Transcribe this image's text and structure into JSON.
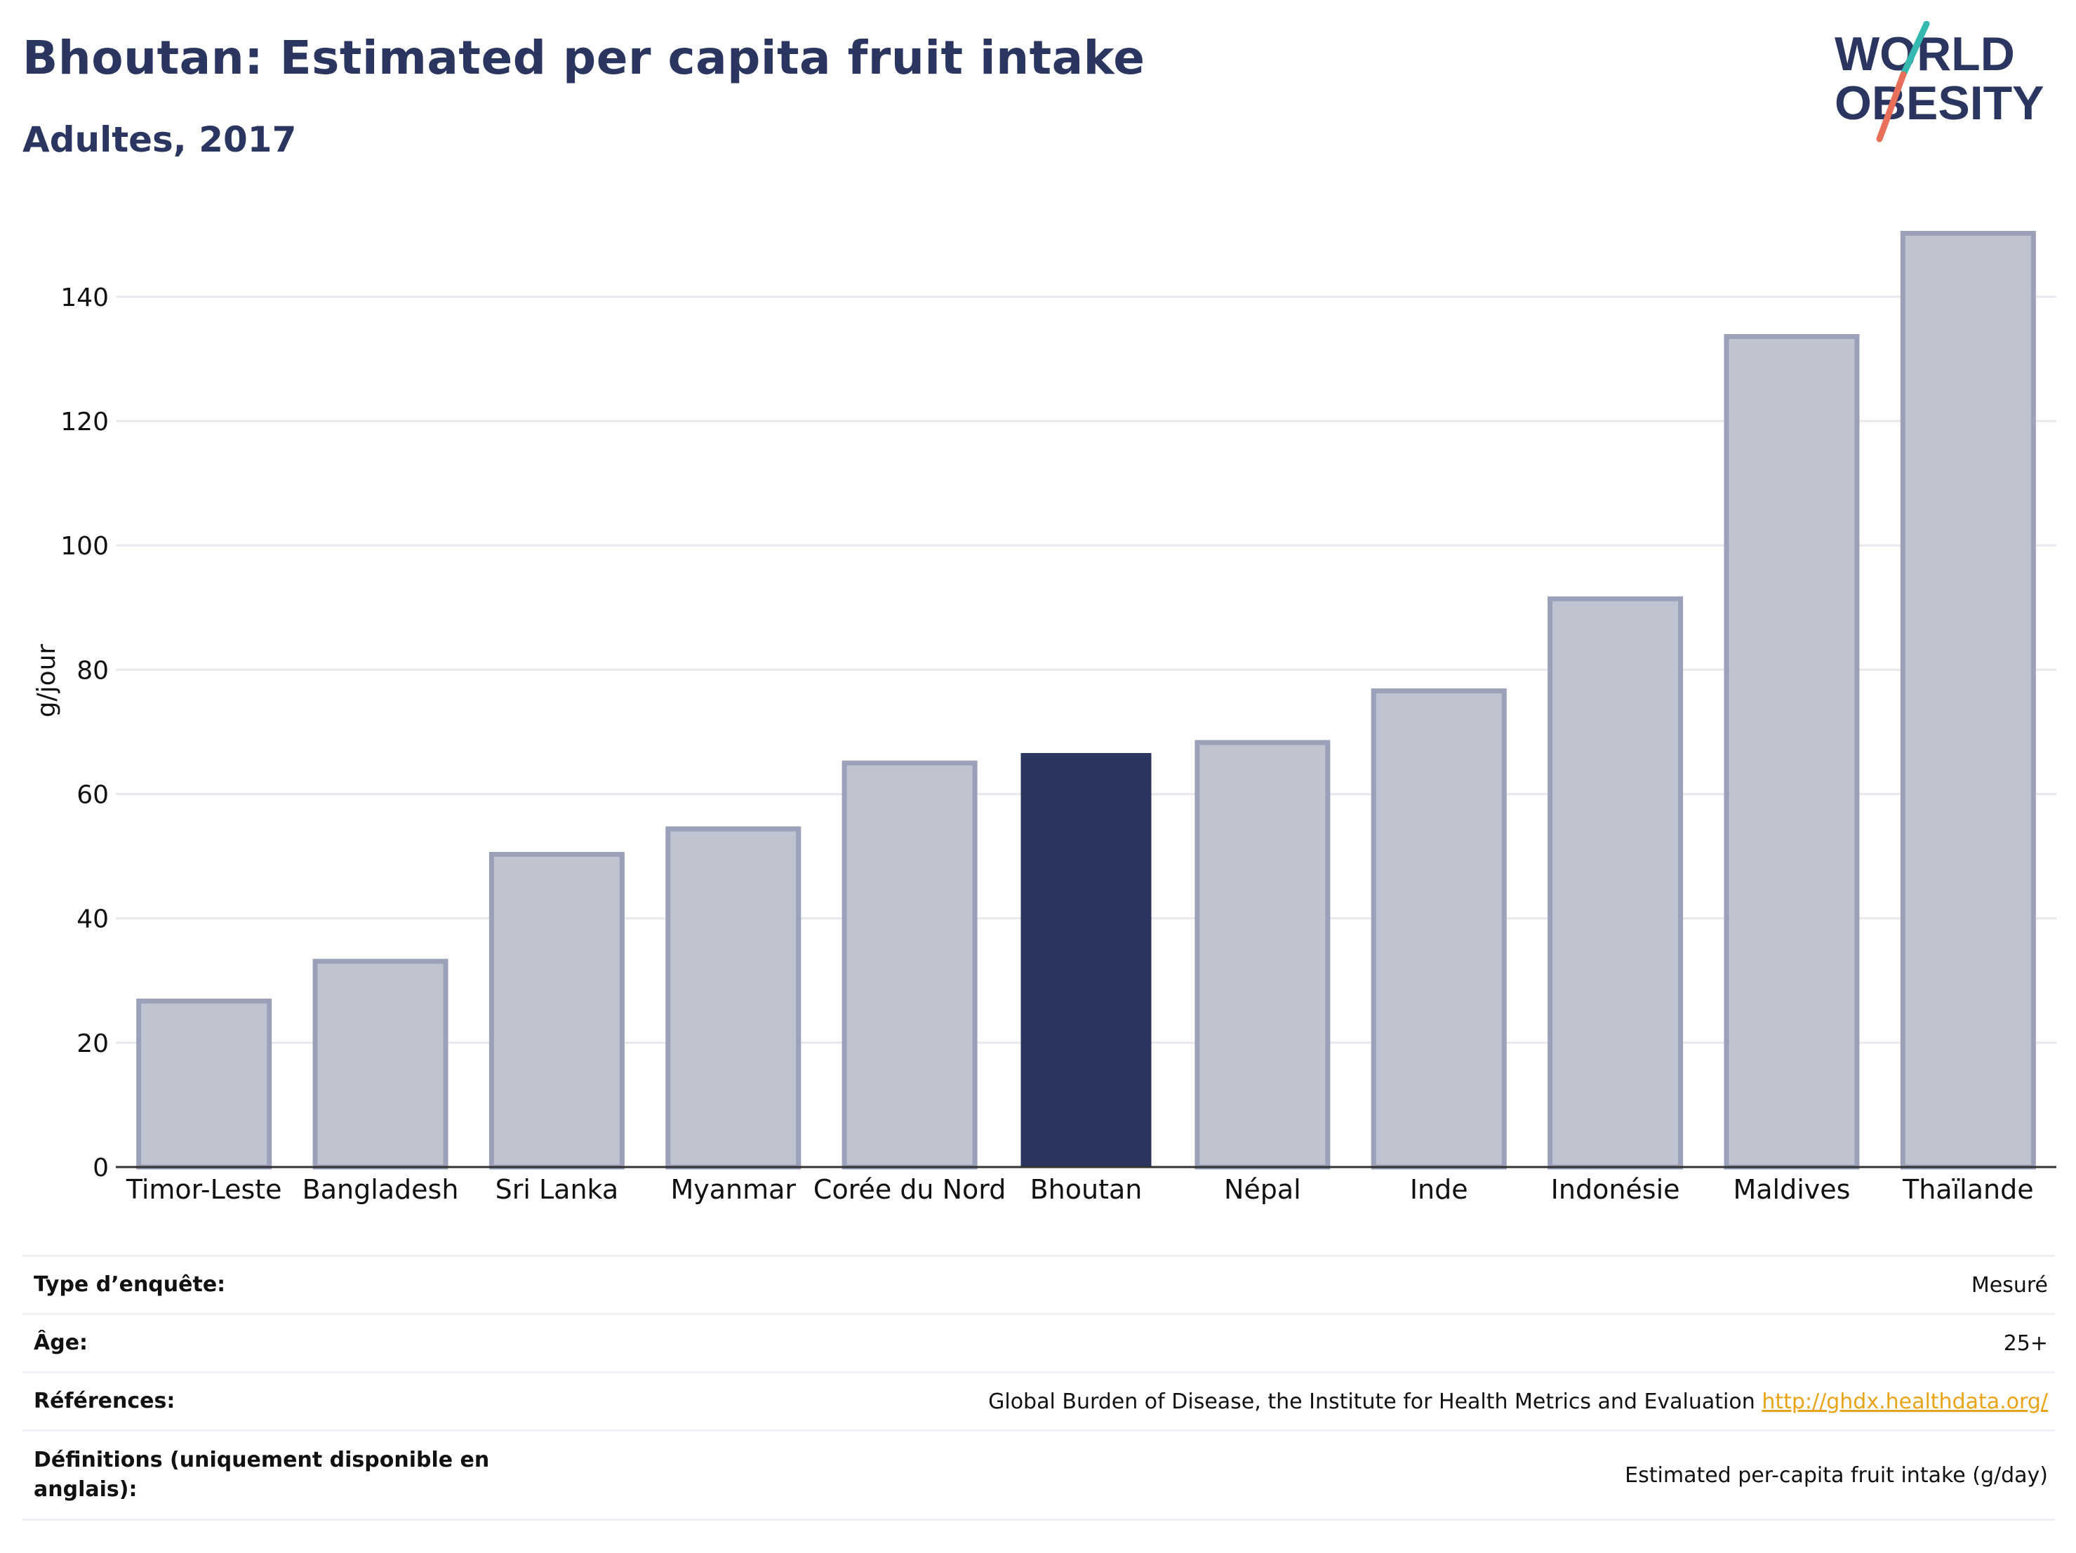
{
  "header": {
    "title": "Bhoutan: Estimated per capita fruit intake",
    "subtitle": "Adultes, 2017"
  },
  "logo": {
    "line1": "WORLD",
    "line2": "OBESITY"
  },
  "colors": {
    "highlight": "#2a3560",
    "bar": "#c0c4d1",
    "bar_border": "#9aa1b8",
    "grid": "#e8e8ee",
    "accent_teal": "#35b8b0",
    "accent_coral": "#e8705a",
    "link": "#e8a317"
  },
  "chart_data": {
    "type": "bar",
    "ylabel": "g/jour",
    "ylim": [
      0,
      155
    ],
    "yticks": [
      0,
      20,
      40,
      60,
      80,
      100,
      120,
      140
    ],
    "grid": true,
    "highlight": "Bhoutan",
    "categories": [
      "Timor-Leste",
      "Bangladesh",
      "Sri Lanka",
      "Myanmar",
      "Corée du Nord",
      "Bhoutan",
      "Népal",
      "Inde",
      "Indonésie",
      "Maldives",
      "Thaïlande"
    ],
    "values": [
      26.7,
      33.1,
      50.3,
      54.4,
      65.0,
      66.6,
      68.3,
      76.6,
      91.4,
      133.6,
      150.2
    ]
  },
  "meta": {
    "survey_label": "Type d’enquête:",
    "survey_value": "Mesuré",
    "age_label": "Âge:",
    "age_value": "25+",
    "ref_label": "Références:",
    "ref_value": "Global Burden of Disease, the Institute for Health Metrics and Evaluation",
    "ref_link": "http://ghdx.healthdata.org/",
    "def_label": "Définitions (uniquement disponible en anglais):",
    "def_value": "Estimated per-capita fruit intake (g/day)"
  }
}
